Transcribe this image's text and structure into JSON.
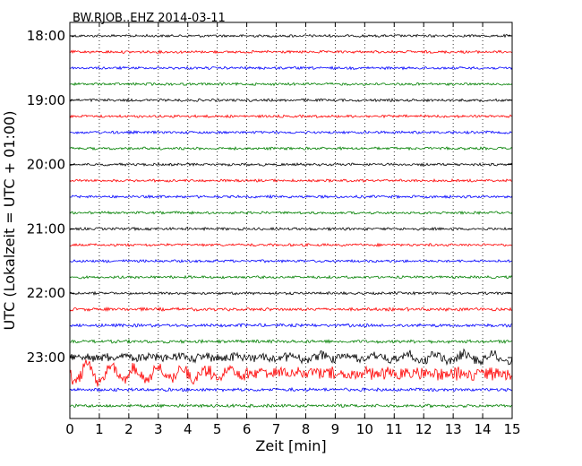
{
  "chart_data": {
    "type": "line",
    "title": "BW.RJOB..EHZ 2014-03-11",
    "xlabel": "Zeit  [min]",
    "ylabel": "UTC (Lokalzeit = UTC + 01:00)",
    "xlim": [
      0,
      15
    ],
    "x_ticks": [
      "0",
      "1",
      "2",
      "3",
      "4",
      "5",
      "6",
      "7",
      "8",
      "9",
      "10",
      "11",
      "12",
      "13",
      "14",
      "15"
    ],
    "y_ticks": [
      "18:00",
      "19:00",
      "20:00",
      "21:00",
      "22:00",
      "23:00"
    ],
    "grid": "vertical dotted",
    "colors": [
      "#000000",
      "#ff0000",
      "#0000ff",
      "#008000"
    ],
    "traces": [
      {
        "start": "18:00",
        "amplitude": 0.1
      },
      {
        "start": "18:15",
        "amplitude": 0.1
      },
      {
        "start": "18:30",
        "amplitude": 0.1
      },
      {
        "start": "18:45",
        "amplitude": 0.1
      },
      {
        "start": "19:00",
        "amplitude": 0.1
      },
      {
        "start": "19:15",
        "amplitude": 0.1
      },
      {
        "start": "19:30",
        "amplitude": 0.1
      },
      {
        "start": "19:45",
        "amplitude": 0.1
      },
      {
        "start": "20:00",
        "amplitude": 0.1
      },
      {
        "start": "20:15",
        "amplitude": 0.1
      },
      {
        "start": "20:30",
        "amplitude": 0.1
      },
      {
        "start": "20:45",
        "amplitude": 0.1
      },
      {
        "start": "21:00",
        "amplitude": 0.1
      },
      {
        "start": "21:15",
        "amplitude": 0.1
      },
      {
        "start": "21:30",
        "amplitude": 0.1
      },
      {
        "start": "21:45",
        "amplitude": 0.1
      },
      {
        "start": "22:00",
        "amplitude": 0.1
      },
      {
        "start": "22:15",
        "amplitude": 0.12
      },
      {
        "start": "22:30",
        "amplitude": 0.12
      },
      {
        "start": "22:45",
        "amplitude": 0.12
      },
      {
        "start": "23:00",
        "amplitude": 0.35
      },
      {
        "start": "23:15",
        "amplitude": 0.5
      },
      {
        "start": "23:30",
        "amplitude": 0.12
      },
      {
        "start": "23:45",
        "amplitude": 0.12
      }
    ]
  }
}
